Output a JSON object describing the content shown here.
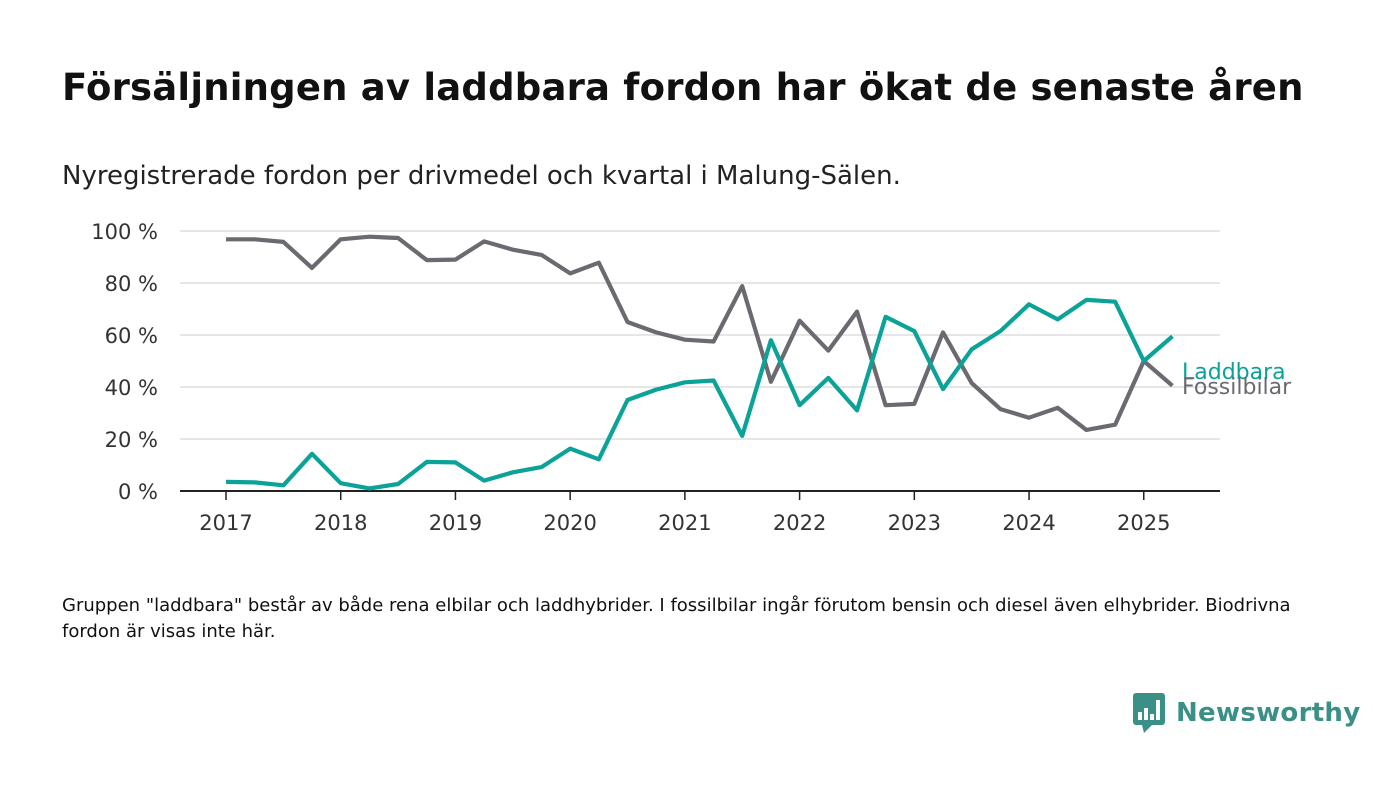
{
  "header": {
    "title": "Försäljningen av laddbara fordon har ökat de senaste åren",
    "subtitle": "Nyregistrerade fordon per drivmedel och kvartal i Malung-Sälen."
  },
  "footer": {
    "note": "Gruppen \"laddbara\" består av både rena elbilar och laddhybrider. I fossilbilar ingår förutom bensin och diesel även elhybrider. Biodrivna fordon är visas inte här.",
    "brand": "Newsworthy"
  },
  "chart_data": {
    "type": "line",
    "title": "Försäljningen av laddbara fordon har ökat de senaste åren",
    "subtitle": "Nyregistrerade fordon per drivmedel och kvartal i Malung-Sälen.",
    "xlabel": "",
    "ylabel": "",
    "x": [
      "2017-Q1",
      "2017-Q2",
      "2017-Q3",
      "2017-Q4",
      "2018-Q1",
      "2018-Q2",
      "2018-Q3",
      "2018-Q4",
      "2019-Q1",
      "2019-Q2",
      "2019-Q3",
      "2019-Q4",
      "2020-Q1",
      "2020-Q2",
      "2020-Q3",
      "2020-Q4",
      "2021-Q1",
      "2021-Q2",
      "2021-Q3",
      "2021-Q4",
      "2022-Q1",
      "2022-Q2",
      "2022-Q3",
      "2022-Q4",
      "2023-Q1",
      "2023-Q2",
      "2023-Q3",
      "2023-Q4",
      "2024-Q1",
      "2024-Q2",
      "2024-Q3",
      "2024-Q4",
      "2025-Q1",
      "2025-Q2"
    ],
    "x_tick_labels": [
      "2017",
      "2018",
      "2019",
      "2020",
      "2021",
      "2022",
      "2023",
      "2024",
      "2025"
    ],
    "y_tick_labels": [
      "0 %",
      "20 %",
      "40 %",
      "60 %",
      "80 %",
      "100 %"
    ],
    "y_ticks": [
      0,
      20,
      40,
      60,
      80,
      100
    ],
    "ylim": [
      0,
      100
    ],
    "grid": true,
    "legend": "direct labels at line ends",
    "series": [
      {
        "name": "Laddbara",
        "color": "#0ba298",
        "values": [
          3.5,
          3.3,
          2.2,
          14.3,
          3.0,
          1.0,
          2.7,
          11.2,
          11.0,
          4.0,
          7.2,
          9.2,
          16.3,
          12.2,
          35.0,
          39.0,
          41.8,
          42.5,
          21.2,
          58.0,
          33.0,
          43.5,
          31.0,
          67.0,
          61.5,
          39.2,
          54.5,
          61.5,
          71.8,
          66.0,
          73.5,
          72.8,
          50.0,
          59.5
        ]
      },
      {
        "name": "Fossilbilar",
        "color": "#6c6970",
        "values": [
          96.8,
          96.8,
          95.8,
          85.8,
          96.8,
          97.8,
          97.3,
          88.8,
          89.0,
          96.0,
          92.8,
          90.8,
          83.7,
          87.8,
          65.0,
          61.0,
          58.2,
          57.5,
          78.8,
          42.0,
          65.5,
          54.0,
          69.0,
          33.0,
          33.5,
          61.0,
          41.5,
          31.5,
          28.2,
          32.0,
          23.5,
          25.5,
          50.0,
          40.5
        ]
      }
    ]
  }
}
